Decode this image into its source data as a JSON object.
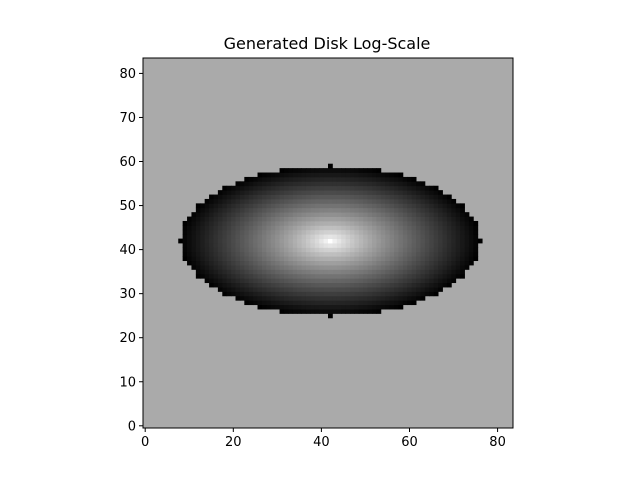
{
  "chart_data": {
    "type": "heatmap",
    "title": "Generated Disk Log-Scale",
    "xlabel": "",
    "ylabel": "",
    "grid": false,
    "colormap": "gray",
    "background_value_color": "#aaaaaa",
    "grid_size": [
      84,
      84
    ],
    "origin": "lower",
    "xlim": [
      -0.5,
      83.5
    ],
    "ylim": [
      -0.5,
      83.5
    ],
    "xticks": [
      0,
      20,
      40,
      60,
      80
    ],
    "yticks": [
      0,
      10,
      20,
      30,
      40,
      50,
      60,
      70,
      80
    ],
    "disk": {
      "center_x": 42,
      "center_y": 42,
      "semi_major": 34,
      "semi_minor": 17,
      "peak_level": 1.0,
      "edge_level": 0.0
    }
  }
}
